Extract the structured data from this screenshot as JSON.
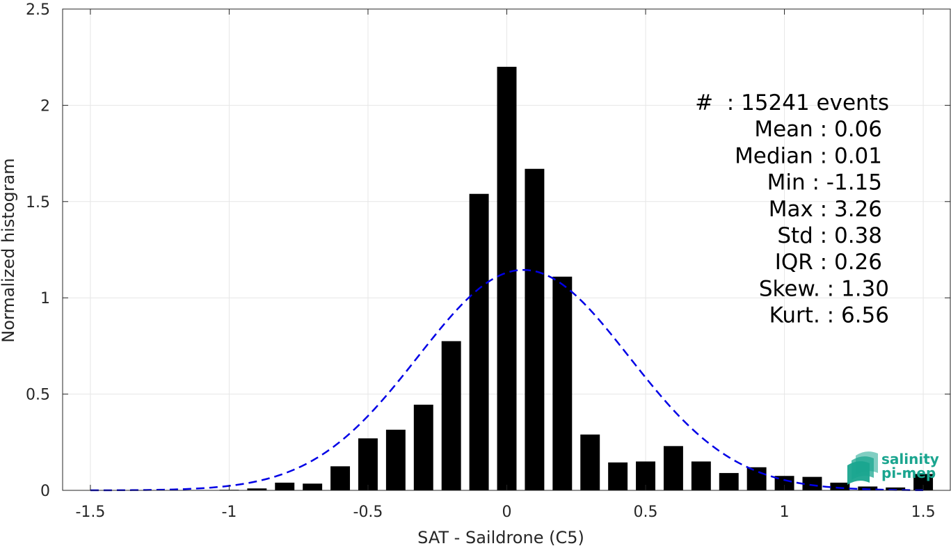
{
  "chart_data": {
    "type": "bar",
    "title": "",
    "xlabel": "SAT - Saildrone (C5)",
    "ylabel": "Normalized histogram",
    "xlim": [
      -1.6,
      1.6
    ],
    "ylim": [
      0,
      2.5
    ],
    "grid": true,
    "x_ticks": [
      "-1.5",
      "-1",
      "-0.5",
      "0",
      "0.5",
      "1",
      "1.5"
    ],
    "x_tick_values": [
      -1.5,
      -1,
      -0.5,
      0,
      0.5,
      1,
      1.5
    ],
    "y_ticks": [
      "0",
      "0.5",
      "1",
      "1.5",
      "2",
      "2.5"
    ],
    "y_tick_values": [
      0,
      0.5,
      1,
      1.5,
      2,
      2.5
    ],
    "bar_width": 0.07,
    "bar_color": "#000000",
    "series": [
      {
        "x": [
          -1.5,
          -1.4,
          -1.3,
          -1.2,
          -1.1,
          -1.0,
          -0.9,
          -0.8,
          -0.7,
          -0.6,
          -0.5,
          -0.4,
          -0.3,
          -0.2,
          -0.1,
          0.0,
          0.1,
          0.2,
          0.3,
          0.4,
          0.5,
          0.6,
          0.7,
          0.8,
          0.9,
          1.0,
          1.1,
          1.2,
          1.3,
          1.4,
          1.5
        ],
        "values": [
          0,
          0,
          0,
          0,
          0,
          0.003,
          0.01,
          0.04,
          0.035,
          0.125,
          0.27,
          0.315,
          0.445,
          0.775,
          1.54,
          2.2,
          1.67,
          1.11,
          0.29,
          0.145,
          0.15,
          0.23,
          0.15,
          0.09,
          0.12,
          0.075,
          0.07,
          0.04,
          0.02,
          0.015,
          0.085
        ]
      }
    ],
    "fit": {
      "type": "gaussian",
      "mean": 0.06,
      "std": 0.38,
      "amplitude": 1.145,
      "x_range": [
        -1.5,
        1.5
      ],
      "color": "#0000e6",
      "style": "dashed"
    },
    "stats": [
      "#  : 15241 events",
      "Mean : 0.06",
      "Median : 0.01",
      "Min : -1.15",
      "Max : 3.26",
      "Std : 0.38",
      "IQR : 0.26",
      "Skew. : 1.30",
      "Kurt. : 6.56"
    ]
  },
  "logo": {
    "line1": "salinity",
    "line2": "pi-mep",
    "icon": "layered-waves-icon",
    "color": "#1aa58f"
  }
}
